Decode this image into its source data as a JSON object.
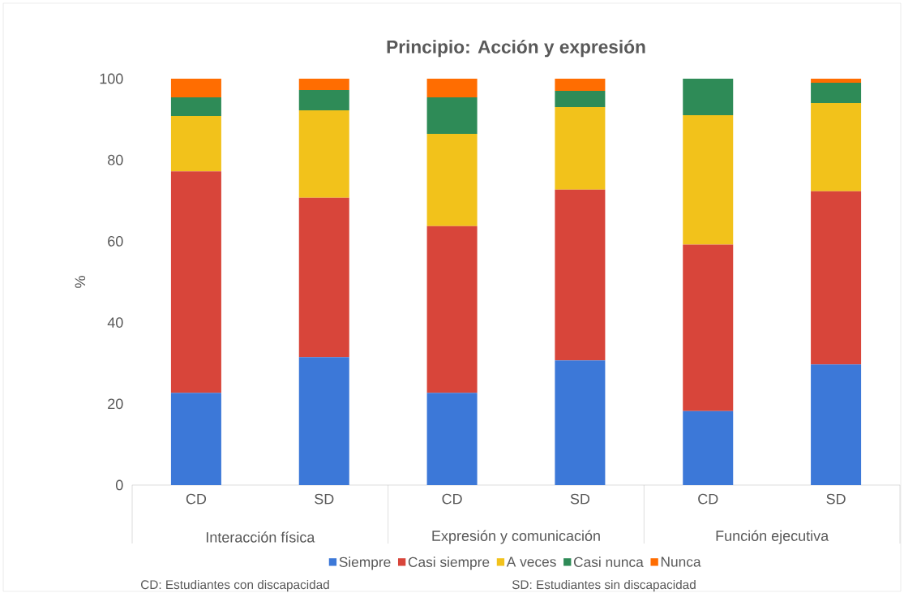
{
  "chart_data": {
    "type": "bar",
    "stacked": true,
    "title": "Principio: Acción y expresión",
    "ylabel": "%",
    "categories": [
      "CD",
      "SD",
      "CD",
      "SD",
      "CD",
      "SD"
    ],
    "series": [
      {
        "name": "Siempre",
        "color": "#3c78d8",
        "values": [
          22.7,
          31.5,
          22.7,
          30.7,
          18.2,
          29.7
        ]
      },
      {
        "name": "Casi siempre",
        "color": "#d8453a",
        "values": [
          54.5,
          39.2,
          41.0,
          42.0,
          41.0,
          42.6
        ]
      },
      {
        "name": "A veces",
        "color": "#f2c21b",
        "values": [
          13.6,
          21.5,
          22.7,
          20.3,
          31.8,
          21.7
        ]
      },
      {
        "name": "Casi nunca",
        "color": "#2e8b57",
        "values": [
          4.6,
          5.0,
          9.0,
          4.0,
          9.0,
          5.0
        ]
      },
      {
        "name": "Nunca",
        "color": "#ff6d01",
        "values": [
          4.6,
          2.8,
          4.6,
          3.0,
          0,
          1.0
        ]
      }
    ],
    "ylim": [
      0,
      100
    ],
    "yticks": [
      0,
      20,
      40,
      60,
      80,
      100
    ],
    "legend": "bottom",
    "annotations": [
      "Interacción física",
      "Expresión y comunicación",
      "Función ejecutiva",
      "CD: Estudiantes  con discapacidad",
      "SD: Estudiantes  sin discapacidad"
    ]
  }
}
